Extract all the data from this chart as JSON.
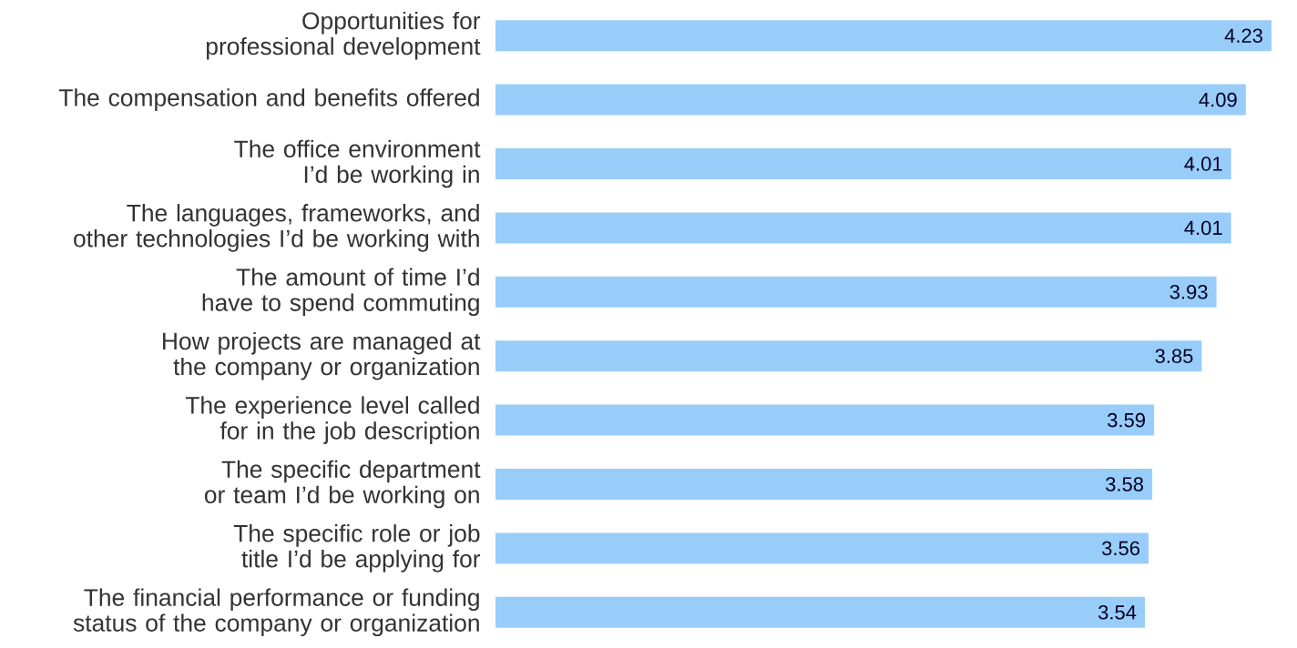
{
  "chart_data": {
    "type": "bar",
    "orientation": "horizontal",
    "categories": [
      "Opportunities for professional development",
      "The compensation and benefits offered",
      "The office environment I’d be working in",
      "The languages, frameworks, and other technologies I’d be working with",
      "The amount of time I’d have to spend commuting",
      "How projects are managed at the company or organization",
      "The experience level called for in the job description",
      "The specific department or team I’d be working on",
      "The specific role or job title I’d be applying for",
      "The financial performance or funding status of the company or organization"
    ],
    "values": [
      4.23,
      4.09,
      4.01,
      4.01,
      3.93,
      3.85,
      3.59,
      3.58,
      3.56,
      3.54
    ],
    "color": "#99cdf9",
    "data_labels": true
  }
}
